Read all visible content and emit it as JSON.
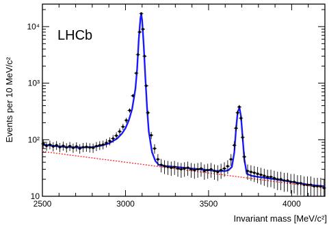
{
  "chart_data": {
    "type": "scatter",
    "title": "",
    "annotation": "LHCb",
    "xlabel": "Invariant mass [MeV/c²]",
    "ylabel": "Events per 10 MeV/c²",
    "xlim": [
      2500,
      4200
    ],
    "ylim": [
      10,
      25000
    ],
    "yscale": "log",
    "grid": false,
    "x_ticks": [
      {
        "value": 2500,
        "label": "2500"
      },
      {
        "value": 3000,
        "label": "3000"
      },
      {
        "value": 3500,
        "label": "3500"
      },
      {
        "value": 4000,
        "label": "4000"
      }
    ],
    "y_ticks": [
      {
        "value": 10,
        "label": "10"
      },
      {
        "value": 100,
        "label": "10²"
      },
      {
        "value": 1000,
        "label": "10³"
      },
      {
        "value": 10000,
        "label": "10⁴"
      }
    ],
    "colors": {
      "data": "#000000",
      "fit": "#1a1aff",
      "background": "#ff2a2a",
      "axis": "#000000"
    },
    "series": [
      {
        "kind": "data points with error bars",
        "x": [
          2505,
          2525,
          2545,
          2565,
          2585,
          2605,
          2625,
          2645,
          2665,
          2685,
          2705,
          2725,
          2745,
          2765,
          2785,
          2805,
          2825,
          2845,
          2865,
          2885,
          2905,
          2925,
          2945,
          2965,
          2985,
          3005,
          3025,
          3045,
          3065,
          3075,
          3085,
          3095,
          3105,
          3115,
          3125,
          3135,
          3155,
          3175,
          3195,
          3215,
          3235,
          3255,
          3275,
          3295,
          3315,
          3335,
          3355,
          3375,
          3395,
          3415,
          3435,
          3455,
          3475,
          3495,
          3515,
          3535,
          3555,
          3575,
          3595,
          3615,
          3635,
          3655,
          3665,
          3675,
          3685,
          3695,
          3705,
          3715,
          3735,
          3755,
          3775,
          3795,
          3815,
          3835,
          3855,
          3875,
          3895,
          3915,
          3935,
          3955,
          3975,
          3995,
          4015,
          4035,
          4055,
          4075,
          4095,
          4115,
          4135,
          4155,
          4175,
          4195
        ],
        "y": [
          85,
          78,
          82,
          76,
          80,
          74,
          78,
          73,
          77,
          72,
          76,
          70,
          74,
          75,
          73,
          72,
          77,
          80,
          82,
          88,
          95,
          105,
          118,
          140,
          170,
          220,
          330,
          600,
          1500,
          3200,
          8000,
          17000,
          9000,
          3000,
          900,
          300,
          120,
          70,
          45,
          36,
          34,
          33,
          32,
          33,
          31,
          30,
          31,
          32,
          30,
          29,
          30,
          31,
          28,
          29,
          30,
          28,
          27,
          29,
          31,
          34,
          45,
          80,
          160,
          300,
          380,
          240,
          110,
          50,
          28,
          27,
          26,
          25,
          24,
          23,
          22,
          22,
          21,
          20,
          20,
          19,
          19,
          18,
          18,
          17,
          17,
          16,
          16,
          16,
          15,
          15,
          15,
          14
        ]
      },
      {
        "kind": "total fit",
        "x": [
          2500,
          2550,
          2600,
          2650,
          2700,
          2750,
          2800,
          2850,
          2900,
          2950,
          2980,
          3000,
          3020,
          3040,
          3060,
          3070,
          3080,
          3090,
          3095,
          3100,
          3110,
          3120,
          3130,
          3140,
          3160,
          3180,
          3200,
          3250,
          3300,
          3350,
          3400,
          3450,
          3500,
          3550,
          3600,
          3620,
          3640,
          3655,
          3665,
          3675,
          3686,
          3695,
          3705,
          3715,
          3730,
          3760,
          3800,
          3850,
          3900,
          3950,
          4000,
          4050,
          4100,
          4150,
          4200
        ],
        "y": [
          82,
          79,
          76,
          74,
          73,
          73,
          74,
          78,
          86,
          105,
          130,
          160,
          220,
          350,
          800,
          1800,
          6000,
          14000,
          17000,
          13000,
          4500,
          1200,
          350,
          140,
          60,
          42,
          36,
          34,
          33,
          32,
          31,
          30,
          29,
          28,
          28,
          29,
          33,
          60,
          150,
          310,
          370,
          260,
          110,
          45,
          25,
          23,
          22,
          21,
          20,
          19,
          18,
          17,
          16,
          15.5,
          15
        ]
      },
      {
        "kind": "background",
        "x": [
          2500,
          4200
        ],
        "y": [
          62,
          14
        ]
      }
    ]
  }
}
